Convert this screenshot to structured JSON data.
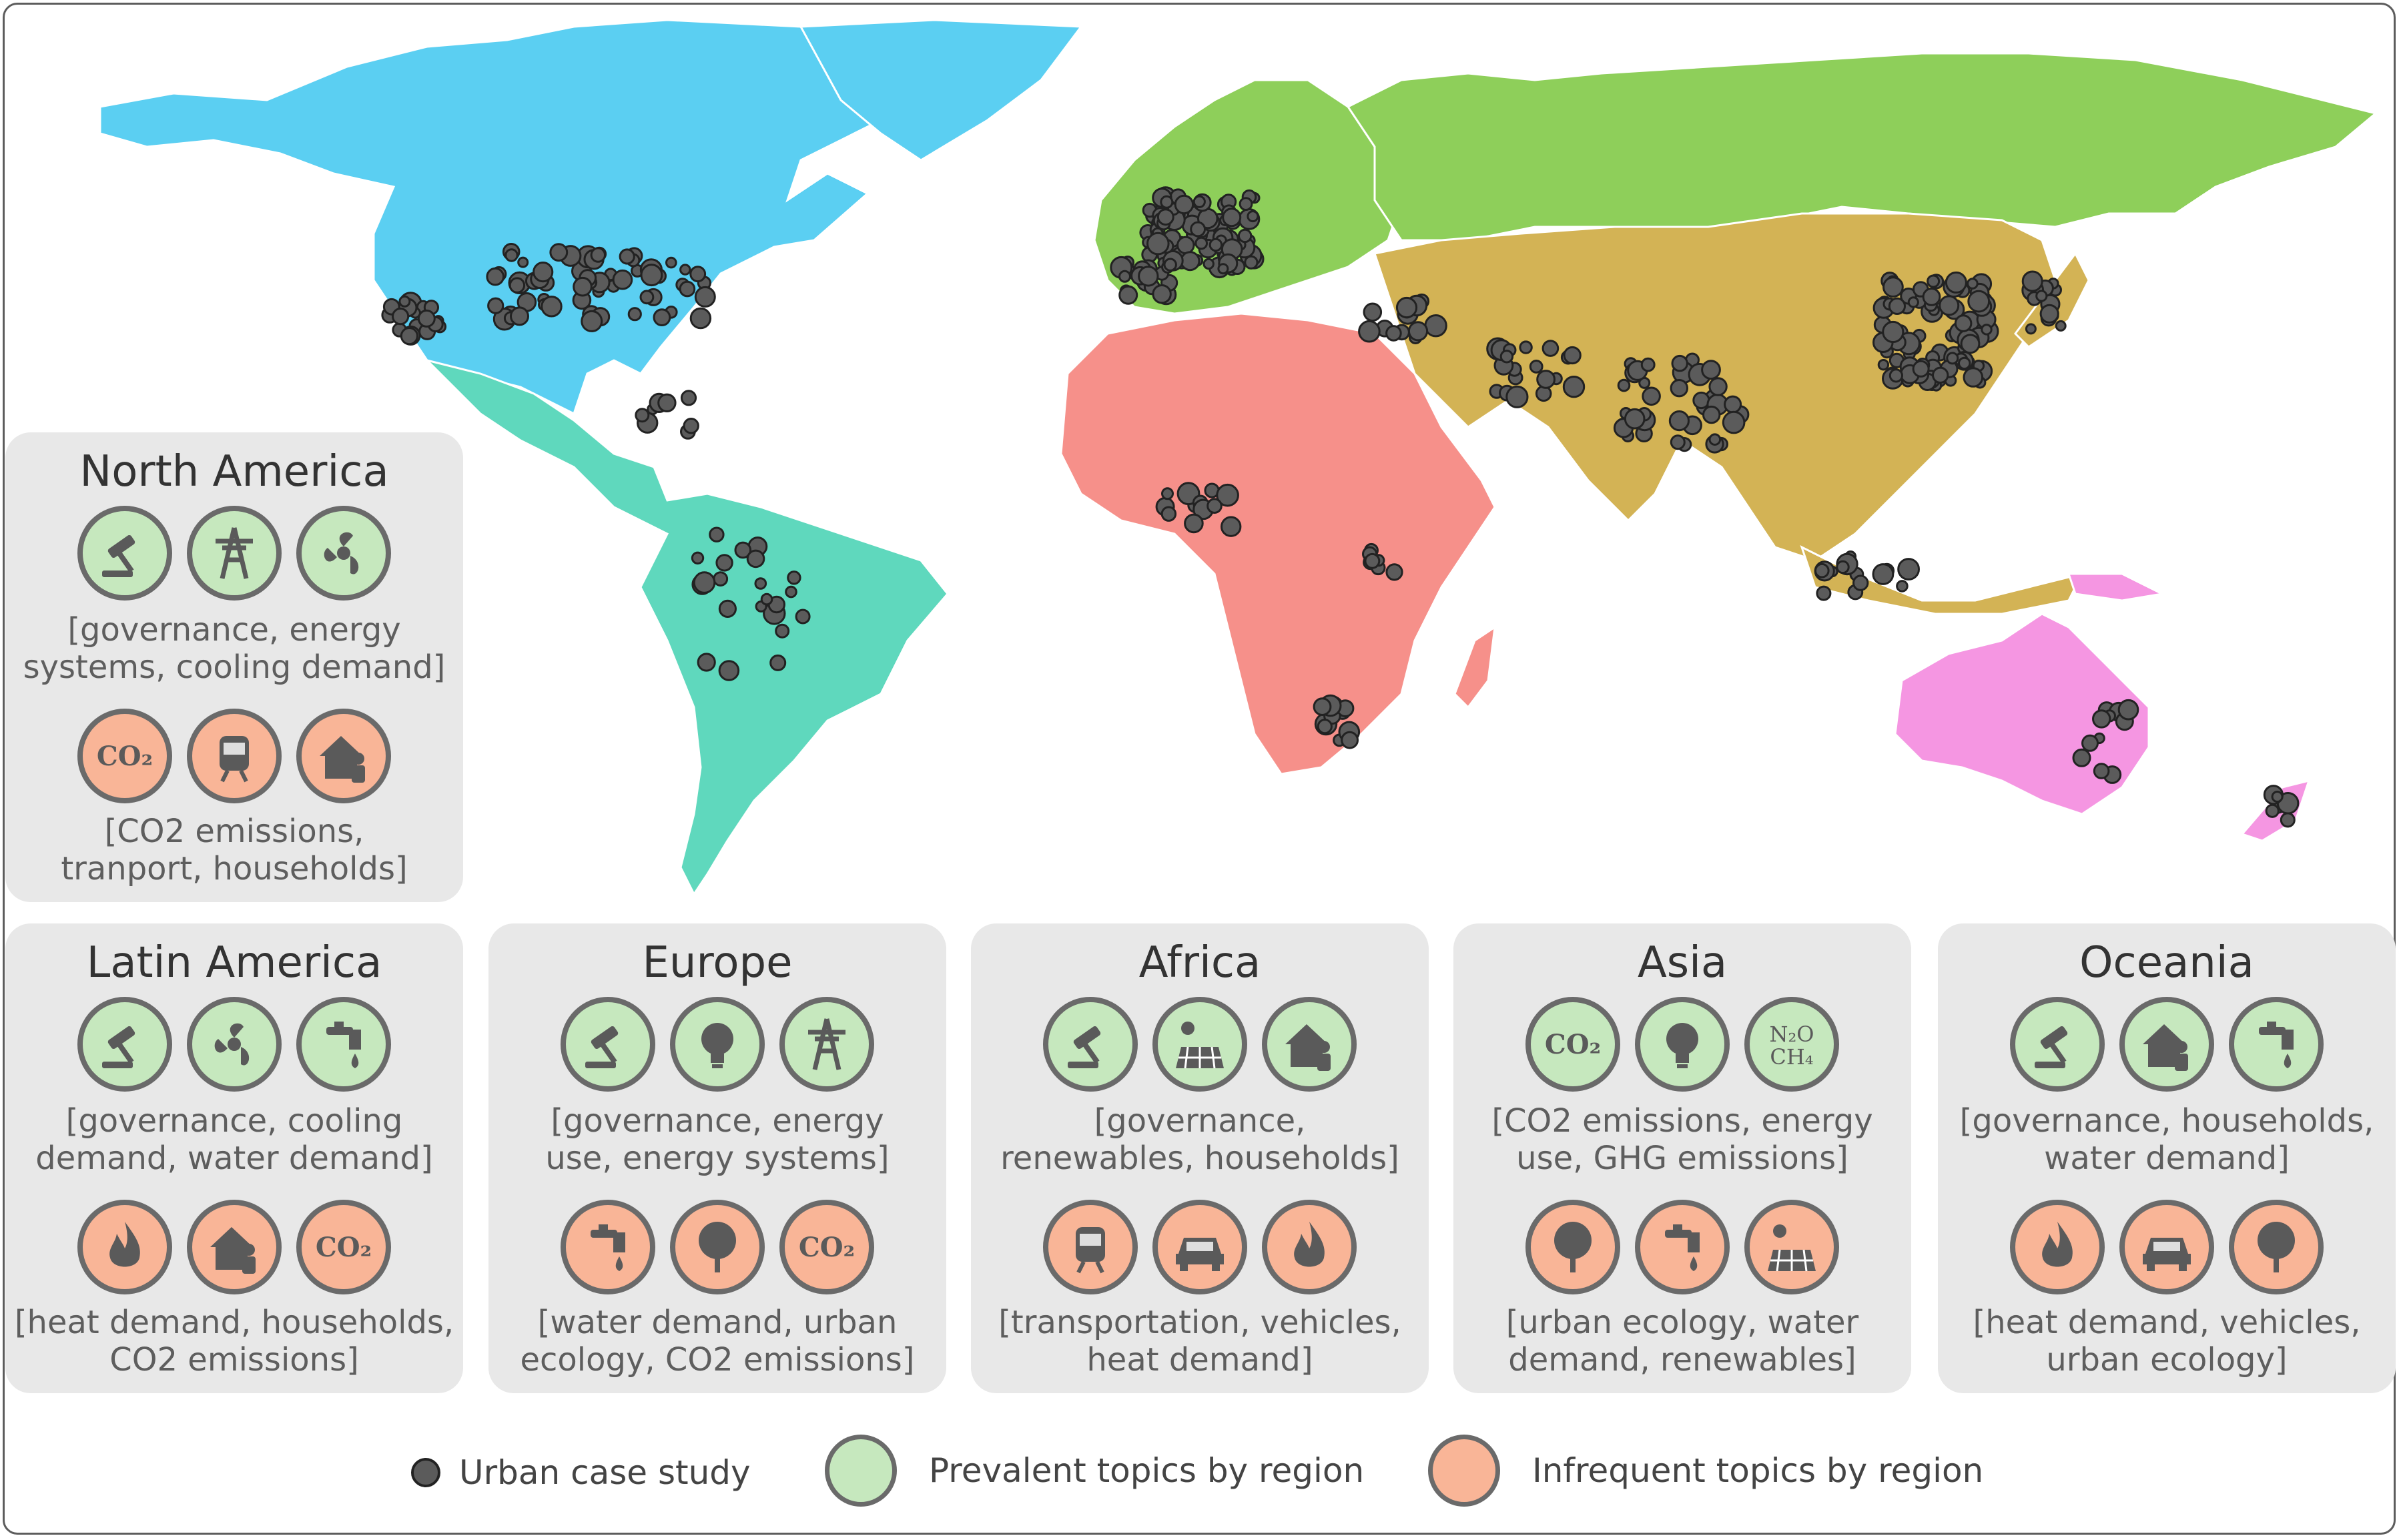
{
  "colors": {
    "north_america": "#5bcff2",
    "latin_america": "#5fd8bd",
    "europe": "#8ecf5a",
    "africa": "#f6908a",
    "asia": "#d3b355",
    "oceania": "#f596e2",
    "prevalent_fill": "#c6e8be",
    "infrequent_fill": "#f9b597",
    "case_study_dot": "#5b5b5b",
    "panel_bg": "#e8e8e8"
  },
  "regions": [
    {
      "name": "North America",
      "prevalent_icons": [
        "governance-icon",
        "energy-systems-icon",
        "cooling-demand-icon"
      ],
      "prevalent_text": [
        "[governance, energy",
        "systems, cooling demand]"
      ],
      "infrequent_icons": [
        "co2-emissions-icon",
        "transport-icon",
        "households-icon"
      ],
      "infrequent_text": [
        "[CO2 emissions,",
        "tranport, households]"
      ]
    },
    {
      "name": "Latin America",
      "prevalent_icons": [
        "governance-icon",
        "cooling-demand-icon",
        "water-demand-icon"
      ],
      "prevalent_text": [
        "[governance, cooling",
        "demand, water demand]"
      ],
      "infrequent_icons": [
        "heat-demand-icon",
        "households-icon",
        "co2-emissions-icon"
      ],
      "infrequent_text": [
        "[heat demand, households,",
        "CO2 emissions]"
      ]
    },
    {
      "name": "Europe",
      "prevalent_icons": [
        "governance-icon",
        "energy-use-icon",
        "energy-systems-icon"
      ],
      "prevalent_text": [
        "[governance, energy",
        "use, energy systems]"
      ],
      "infrequent_icons": [
        "water-demand-icon",
        "urban-ecology-icon",
        "co2-emissions-icon"
      ],
      "infrequent_text": [
        "[water demand, urban",
        "ecology, CO2 emissions]"
      ]
    },
    {
      "name": "Africa",
      "prevalent_icons": [
        "governance-icon",
        "renewables-icon",
        "households-icon"
      ],
      "prevalent_text": [
        "[governance,",
        "renewables, households]"
      ],
      "infrequent_icons": [
        "transport-icon",
        "vehicles-icon",
        "heat-demand-icon"
      ],
      "infrequent_text": [
        "[transportation, vehicles,",
        "heat demand]"
      ]
    },
    {
      "name": "Asia",
      "prevalent_icons": [
        "co2-emissions-icon",
        "energy-use-icon",
        "ghg-emissions-icon"
      ],
      "prevalent_text": [
        "[CO2 emissions, energy",
        "use, GHG emissions]"
      ],
      "infrequent_icons": [
        "urban-ecology-icon",
        "water-demand-icon",
        "renewables-icon"
      ],
      "infrequent_text": [
        "[urban ecology, water",
        "demand, renewables]"
      ]
    },
    {
      "name": "Oceania",
      "prevalent_icons": [
        "governance-icon",
        "households-icon",
        "water-demand-icon"
      ],
      "prevalent_text": [
        "[governance, households,",
        "water demand]"
      ],
      "infrequent_icons": [
        "heat-demand-icon",
        "vehicles-icon",
        "urban-ecology-icon"
      ],
      "infrequent_text": [
        "[heat demand, vehicles,",
        "urban ecology]"
      ]
    }
  ],
  "legend": {
    "case_study": "Urban case study",
    "prevalent": "Prevalent topics by region",
    "infrequent": "Infrequent topics by region"
  }
}
